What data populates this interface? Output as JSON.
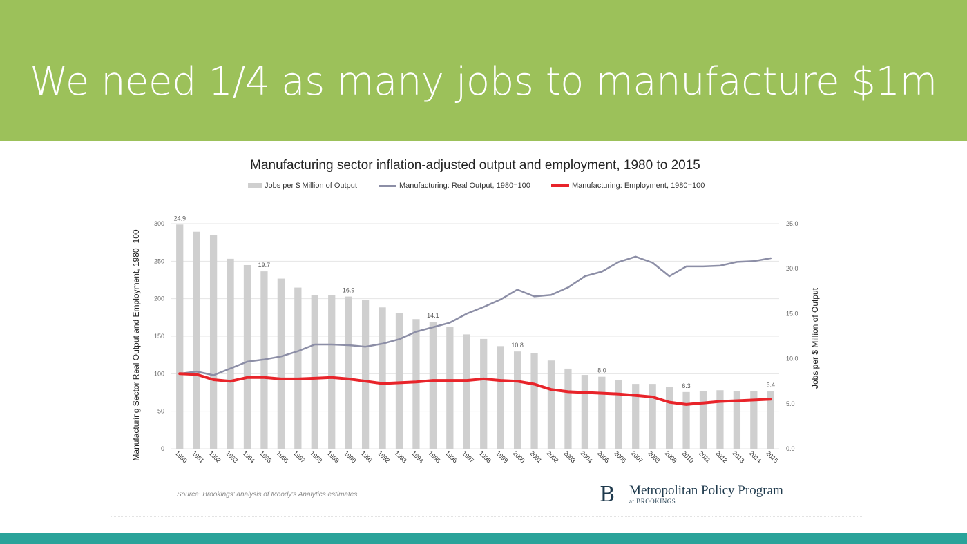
{
  "slide": {
    "headline": "We need 1/4 as many jobs to manufacture $1m",
    "banner_color": "#9cc15a",
    "footer_color": "#2aa39a"
  },
  "source": "Source: Brookings' analysis of Moody's Analytics estimates",
  "logo": {
    "letter": "B",
    "name": "Metropolitan Policy Program",
    "sub": "at BROOKINGS"
  },
  "chart_data": {
    "type": "bar",
    "title": "Manufacturing sector inflation-adjusted output and employment, 1980 to 2015",
    "ylabel": "Manufacturing Sector Real Output and Employment, 1980=100",
    "y2label": "Jobs per $ Million of Output",
    "ylim": [
      0,
      300
    ],
    "y2lim": [
      0,
      25
    ],
    "yticks": [
      "0",
      "50",
      "100",
      "150",
      "200",
      "250",
      "300"
    ],
    "y2ticks": [
      "0.0",
      "5.0",
      "10.0",
      "15.0",
      "20.0",
      "25.0"
    ],
    "grid": true,
    "legend_position": "top",
    "categories": [
      "1980",
      "1981",
      "1982",
      "1983",
      "1984",
      "1985",
      "1986",
      "1987",
      "1988",
      "1989",
      "1990",
      "1991",
      "1992",
      "1993",
      "1994",
      "1995",
      "1996",
      "1997",
      "1998",
      "1999",
      "2000",
      "2001",
      "2002",
      "2003",
      "2004",
      "2005",
      "2006",
      "2007",
      "2008",
      "2009",
      "2010",
      "2011",
      "2012",
      "2013",
      "2014",
      "2015"
    ],
    "series": [
      {
        "name": "Jobs per $ Million of Output",
        "kind": "bar",
        "axis": "right",
        "color": "#cfcfcf",
        "values": [
          24.9,
          24.1,
          23.7,
          21.1,
          20.4,
          19.7,
          18.9,
          17.9,
          17.1,
          17.1,
          16.9,
          16.5,
          15.7,
          15.1,
          14.4,
          14.1,
          13.5,
          12.7,
          12.2,
          11.4,
          10.8,
          10.6,
          9.8,
          8.9,
          8.2,
          8.0,
          7.6,
          7.2,
          7.2,
          6.9,
          6.3,
          6.4,
          6.5,
          6.4,
          6.4,
          6.4
        ]
      },
      {
        "name": "Manufacturing: Real Output, 1980=100",
        "kind": "line",
        "axis": "left",
        "color": "#8c8ea6",
        "values": [
          100,
          103,
          98,
          107,
          116,
          119,
          123,
          130,
          139,
          139,
          138,
          136,
          140,
          146,
          156,
          162,
          168,
          180,
          189,
          199,
          212,
          203,
          205,
          215,
          230,
          236,
          249,
          256,
          248,
          230,
          243,
          243,
          244,
          249,
          250,
          254
        ]
      },
      {
        "name": "Manufacturing: Employment, 1980=100",
        "kind": "line",
        "axis": "left",
        "color": "#e8242a",
        "values": [
          100,
          99,
          92,
          90,
          95,
          95,
          93,
          93,
          94,
          95,
          93,
          90,
          87,
          88,
          89,
          91,
          91,
          91,
          93,
          91,
          90,
          86,
          79,
          76,
          75,
          74,
          73,
          71,
          69,
          62,
          59,
          61,
          63,
          64,
          65,
          66
        ]
      }
    ],
    "data_labels": [
      {
        "index": 0,
        "text": "24.9"
      },
      {
        "index": 5,
        "text": "19.7"
      },
      {
        "index": 10,
        "text": "16.9"
      },
      {
        "index": 15,
        "text": "14.1"
      },
      {
        "index": 20,
        "text": "10.8"
      },
      {
        "index": 25,
        "text": "8.0"
      },
      {
        "index": 30,
        "text": "6.3"
      },
      {
        "index": 35,
        "text": "6.4"
      }
    ]
  }
}
